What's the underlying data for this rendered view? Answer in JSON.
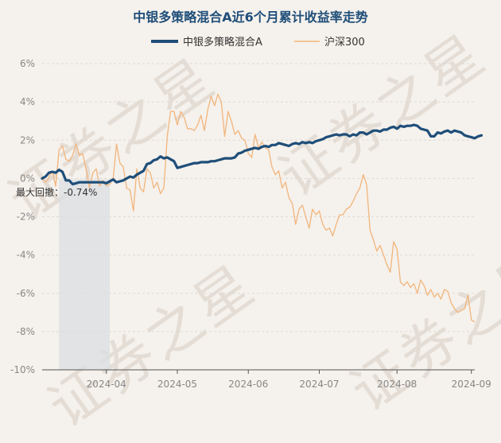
{
  "chart_data": {
    "type": "line",
    "title": "中银多策略混合A近6个月累计收益率走势",
    "legend": [
      "中银多策略混合A",
      "沪深300"
    ],
    "watermark": "证券之星",
    "yaxis": {
      "ticks": [
        "6%",
        "4%",
        "2%",
        "0%",
        "-2%",
        "-4%",
        "-6%",
        "-8%",
        "-10%"
      ],
      "ylim": [
        -10,
        6
      ]
    },
    "xaxis": {
      "ticks": [
        "2024-04",
        "2024-05",
        "2024-06",
        "2024-07",
        "2024-08",
        "2024-09"
      ],
      "tick_index": [
        19,
        40,
        61,
        82,
        105,
        127
      ],
      "n": 129
    },
    "drawdown": {
      "label": "最大回撤：-0.74%",
      "start_index": 5,
      "end_index": 20
    },
    "colors": {
      "fund": "#1f4e79",
      "index": "#f2b57c",
      "drawdown": "#d9dde3",
      "title": "#1f4e79"
    },
    "series": [
      {
        "name": "中银多策略混合A",
        "values": [
          0.0,
          0.1,
          0.3,
          0.35,
          0.3,
          0.45,
          0.35,
          -0.1,
          -0.1,
          -0.3,
          -0.25,
          -0.2,
          -0.2,
          -0.2,
          -0.2,
          -0.2,
          -0.2,
          -0.2,
          -0.2,
          -0.25,
          -0.15,
          -0.05,
          -0.2,
          -0.15,
          -0.1,
          0.0,
          0.1,
          0.05,
          0.2,
          0.3,
          0.4,
          0.75,
          0.8,
          0.95,
          1.0,
          1.15,
          1.05,
          1.1,
          1.0,
          0.9,
          0.55,
          0.6,
          0.65,
          0.7,
          0.75,
          0.8,
          0.8,
          0.85,
          0.85,
          0.85,
          0.9,
          0.9,
          0.95,
          1.0,
          1.05,
          1.05,
          1.05,
          1.1,
          1.3,
          1.35,
          1.45,
          1.5,
          1.55,
          1.6,
          1.55,
          1.65,
          1.7,
          1.65,
          1.75,
          1.75,
          1.85,
          1.8,
          1.75,
          1.7,
          1.8,
          1.85,
          1.8,
          1.9,
          1.85,
          1.9,
          1.85,
          1.95,
          2.0,
          2.05,
          2.15,
          2.2,
          2.25,
          2.3,
          2.25,
          2.3,
          2.3,
          2.2,
          2.3,
          2.25,
          2.4,
          2.4,
          2.3,
          2.4,
          2.5,
          2.5,
          2.45,
          2.55,
          2.55,
          2.65,
          2.7,
          2.6,
          2.75,
          2.7,
          2.75,
          2.75,
          2.8,
          2.75,
          2.6,
          2.55,
          2.5,
          2.2,
          2.2,
          2.4,
          2.35,
          2.45,
          2.5,
          2.4,
          2.5,
          2.45,
          2.4,
          2.25,
          2.2,
          2.15,
          2.1,
          2.2,
          2.25
        ]
      },
      {
        "name": "沪深300",
        "values": [
          0.0,
          -0.2,
          0.05,
          0.4,
          -0.4,
          1.5,
          1.7,
          1.0,
          0.9,
          1.2,
          1.8,
          1.2,
          1.3,
          0.5,
          -0.5,
          0.3,
          0.5,
          -0.4,
          -0.1,
          -0.4,
          -0.3,
          0.0,
          1.8,
          0.8,
          0.6,
          -0.5,
          -0.6,
          -1.7,
          0.5,
          -0.5,
          -0.7,
          0.5,
          0.3,
          -0.5,
          -0.2,
          -0.8,
          -0.5,
          2.2,
          3.5,
          3.5,
          2.8,
          3.5,
          3.2,
          2.6,
          2.6,
          2.5,
          2.8,
          3.3,
          2.5,
          3.6,
          4.3,
          3.8,
          4.4,
          4.0,
          2.2,
          3.5,
          3.0,
          2.3,
          2.5,
          2.1,
          2.0,
          1.3,
          1.1,
          2.3,
          1.6,
          1.9,
          1.6,
          1.5,
          0.6,
          0.2,
          0.4,
          -0.5,
          -0.2,
          -1.0,
          -1.3,
          -2.4,
          -1.6,
          -1.4,
          -2.0,
          -2.6,
          -1.6,
          -1.9,
          -1.7,
          -2.4,
          -2.7,
          -2.6,
          -3.0,
          -2.4,
          -1.9,
          -1.9,
          -1.6,
          -1.5,
          -1.2,
          -0.8,
          -0.5,
          0.2,
          -0.3,
          -2.7,
          -3.2,
          -3.8,
          -3.5,
          -4.0,
          -4.5,
          -4.9,
          -3.3,
          -3.7,
          -5.4,
          -5.6,
          -5.4,
          -5.7,
          -5.5,
          -6.0,
          -5.3,
          -5.6,
          -6.1,
          -5.8,
          -6.2,
          -6.0,
          -6.3,
          -5.8,
          -5.9,
          -6.5,
          -6.8,
          -7.0,
          -6.9,
          -6.8,
          -6.1,
          -7.4,
          -7.5
        ]
      }
    ]
  }
}
